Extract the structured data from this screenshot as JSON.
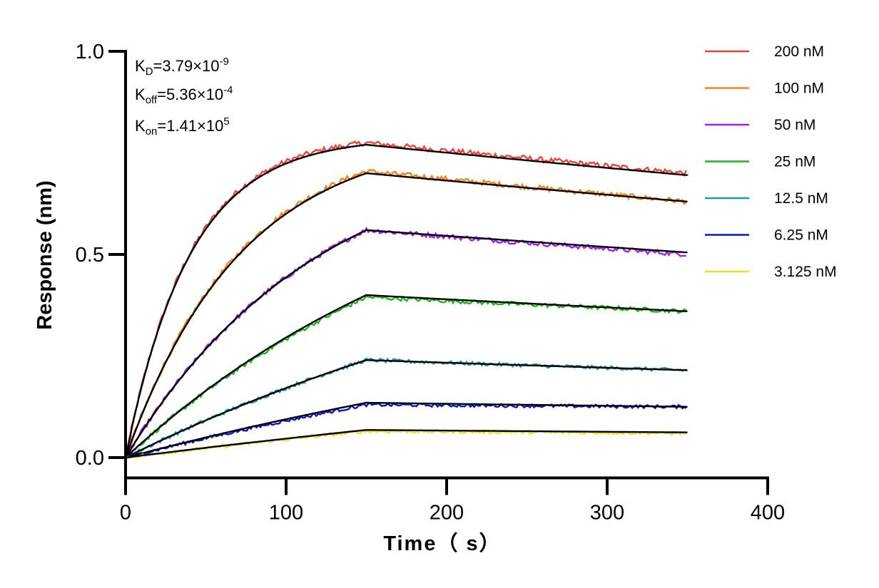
{
  "chart_data": {
    "type": "line",
    "xlabel": "Time（ s）",
    "ylabel": "Response (nm)",
    "xlim": [
      0,
      400
    ],
    "ylim": [
      -0.05,
      1.0
    ],
    "xticks": [
      "0",
      "100",
      "200",
      "300",
      "400"
    ],
    "yticks": [
      "0.0",
      "0.5",
      "1.0"
    ],
    "grid": false,
    "legend_position": "top-right",
    "annotations": {
      "kd": {
        "base": "K",
        "sub": "D",
        "mant": "=3.79×10",
        "exp": "-9"
      },
      "koff": {
        "base": "K",
        "sub": "off",
        "mant": "=5.36×10",
        "exp": "-4"
      },
      "kon": {
        "base": "K",
        "sub": "on",
        "mant": "=1.41×10",
        "exp": "5"
      }
    },
    "association_end_s": 150,
    "dissociation_end_s": 350,
    "fit_color": "#000000",
    "series": [
      {
        "name": "200 nM",
        "color": "#e8453c",
        "measured_plateau": 0.775,
        "measured_end": 0.7,
        "fit_peak": 0.77,
        "fit_end": 0.695,
        "rise_tau": 40
      },
      {
        "name": "100 nM",
        "color": "#f58220",
        "measured_plateau": 0.705,
        "measured_end": 0.63,
        "fit_peak": 0.7,
        "fit_end": 0.63,
        "rise_tau": 72
      },
      {
        "name": "50 nM",
        "color": "#a020f0",
        "measured_plateau": 0.56,
        "measured_end": 0.5,
        "fit_peak": 0.56,
        "fit_end": 0.505,
        "rise_tau": 120
      },
      {
        "name": "25 nM",
        "color": "#1eb41e",
        "measured_plateau": 0.395,
        "measured_end": 0.36,
        "fit_peak": 0.4,
        "fit_end": 0.36,
        "rise_tau": 220
      },
      {
        "name": "12.5 nM",
        "color": "#1f9aaa",
        "measured_plateau": 0.24,
        "measured_end": 0.215,
        "fit_peak": 0.24,
        "fit_end": 0.215,
        "rise_tau": 350
      },
      {
        "name": "6.25 nM",
        "color": "#0a14c8",
        "measured_plateau": 0.13,
        "measured_end": 0.125,
        "fit_peak": 0.135,
        "fit_end": 0.125,
        "rise_tau": 500
      },
      {
        "name": "3.125 nM",
        "color": "#f0e020",
        "measured_plateau": 0.065,
        "measured_end": 0.06,
        "fit_peak": 0.068,
        "fit_end": 0.062,
        "rise_tau": 800
      }
    ]
  }
}
